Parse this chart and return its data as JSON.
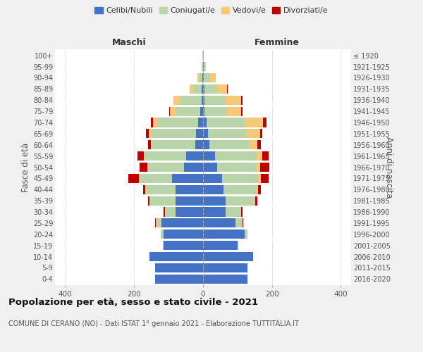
{
  "age_groups": [
    "0-4",
    "5-9",
    "10-14",
    "15-19",
    "20-24",
    "25-29",
    "30-34",
    "35-39",
    "40-44",
    "45-49",
    "50-54",
    "55-59",
    "60-64",
    "65-69",
    "70-74",
    "75-79",
    "80-84",
    "85-89",
    "90-94",
    "95-99",
    "100+"
  ],
  "birth_years": [
    "2016-2020",
    "2011-2015",
    "2006-2010",
    "2001-2005",
    "1996-2000",
    "1991-1995",
    "1986-1990",
    "1981-1985",
    "1976-1980",
    "1971-1975",
    "1966-1970",
    "1961-1965",
    "1956-1960",
    "1951-1955",
    "1946-1950",
    "1941-1945",
    "1936-1940",
    "1931-1935",
    "1926-1930",
    "1921-1925",
    "≤ 1920"
  ],
  "males": {
    "celibi": [
      140,
      140,
      155,
      115,
      115,
      120,
      80,
      80,
      80,
      90,
      55,
      50,
      22,
      20,
      14,
      8,
      5,
      4,
      2,
      1,
      1
    ],
    "coniugati": [
      0,
      0,
      0,
      2,
      8,
      15,
      30,
      75,
      85,
      95,
      105,
      120,
      125,
      130,
      120,
      70,
      60,
      25,
      10,
      3,
      1
    ],
    "vedovi": [
      0,
      0,
      0,
      0,
      0,
      2,
      0,
      0,
      2,
      2,
      2,
      2,
      5,
      8,
      12,
      18,
      20,
      10,
      5,
      1,
      0
    ],
    "divorziati": [
      0,
      0,
      0,
      0,
      0,
      2,
      5,
      5,
      8,
      30,
      22,
      18,
      8,
      8,
      5,
      2,
      2,
      0,
      0,
      0,
      0
    ]
  },
  "females": {
    "nubili": [
      130,
      130,
      145,
      100,
      120,
      95,
      65,
      65,
      60,
      55,
      40,
      35,
      18,
      15,
      10,
      5,
      5,
      5,
      3,
      2,
      1
    ],
    "coniugate": [
      0,
      0,
      0,
      2,
      10,
      20,
      45,
      85,
      95,
      105,
      115,
      120,
      115,
      110,
      110,
      65,
      60,
      35,
      18,
      5,
      1
    ],
    "vedove": [
      0,
      0,
      0,
      0,
      0,
      0,
      0,
      2,
      5,
      8,
      10,
      18,
      25,
      40,
      55,
      40,
      45,
      30,
      15,
      2,
      0
    ],
    "divorziate": [
      0,
      0,
      0,
      0,
      0,
      2,
      5,
      5,
      8,
      22,
      28,
      18,
      10,
      8,
      10,
      5,
      5,
      2,
      0,
      0,
      0
    ]
  },
  "colors": {
    "celibi": "#4472c4",
    "coniugati": "#b8d4a8",
    "vedovi": "#f5c87a",
    "divorziati": "#c00000"
  },
  "xlim": 430,
  "title": "Popolazione per età, sesso e stato civile - 2021",
  "subtitle": "COMUNE DI CERANO (NO) - Dati ISTAT 1° gennaio 2021 - Elaborazione TUTTITALIA.IT",
  "ylabel_left": "Fasce di età",
  "ylabel_right": "Anni di nascita",
  "xlabel_left": "Maschi",
  "xlabel_right": "Femmine",
  "bg_color": "#f0f0f0",
  "plot_bg": "#ffffff"
}
